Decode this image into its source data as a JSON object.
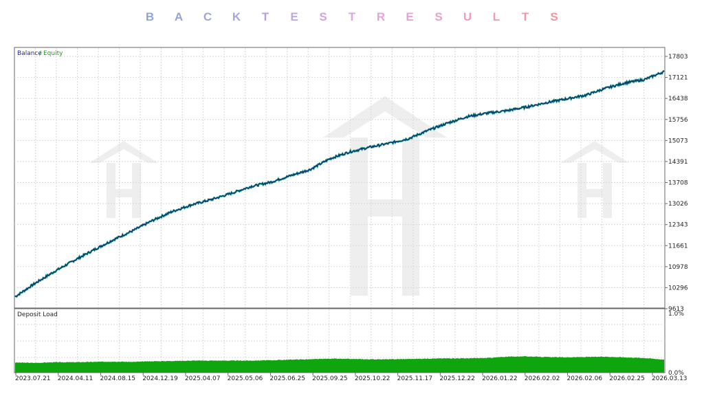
{
  "title_letters": [
    "B",
    "A",
    "C",
    "K",
    "T",
    "E",
    "S",
    "T",
    "R",
    "E",
    "S",
    "U",
    "L",
    "T",
    "S"
  ],
  "title_colors": [
    "#8fa6d8",
    "#93a4dc",
    "#9ea5dd",
    "#a9a3e0",
    "#b4a2e0",
    "#bfa6e3",
    "#cfa4e4",
    "#daa6e3",
    "#e3a3dc",
    "#e8a2d2",
    "#ec9fc8",
    "#ee9dbd",
    "#ef9bb2",
    "#ef98a8",
    "#ee95a0"
  ],
  "chart_data": [
    {
      "type": "line",
      "legend": [
        "Balance",
        "Equity"
      ],
      "legend_colors": [
        "#1f1fb0",
        "#1aa11a"
      ],
      "line_color": "#0b2f6b",
      "y_ticks": [
        "17803",
        "17121",
        "16438",
        "15756",
        "15073",
        "14391",
        "13708",
        "13026",
        "12343",
        "11661",
        "10978",
        "10296",
        "9613"
      ],
      "ylim": [
        9613,
        17803
      ],
      "x_ticks": [
        "2023.07.21",
        "2024.04.11",
        "2024.08.15",
        "2024.12.19",
        "2025.04.07",
        "2025.05.06",
        "2025.06.25",
        "2025.09.25",
        "2025.10.22",
        "2025.11.17",
        "2025.12.22",
        "2026.01.22",
        "2026.02.02",
        "2026.02.06",
        "2026.02.25",
        "2026.03.13"
      ],
      "series": [
        {
          "name": "Balance",
          "values": [
            10000,
            10430,
            10820,
            11180,
            11520,
            11850,
            12150,
            12480,
            12770,
            12990,
            13160,
            13360,
            13580,
            13720,
            13930,
            14130,
            14480,
            14700,
            14850,
            14980,
            15130,
            15400,
            15640,
            15850,
            15960,
            16040,
            16160,
            16300,
            16420,
            16540,
            16760,
            16940,
            17050,
            17310
          ]
        }
      ],
      "grid": true
    },
    {
      "type": "area",
      "title": "Deposit Load",
      "y_ticks": [
        "1.0%",
        "0.0%"
      ],
      "ylim": [
        0,
        1.0
      ],
      "fill_color": "#0ea50e",
      "series": [
        {
          "values": [
            0.31,
            0.3,
            0.32,
            0.32,
            0.33,
            0.34,
            0.33,
            0.35,
            0.36,
            0.37,
            0.37,
            0.37,
            0.37,
            0.38,
            0.4,
            0.41,
            0.43,
            0.42,
            0.41,
            0.41,
            0.42,
            0.43,
            0.44,
            0.44,
            0.45,
            0.49,
            0.5,
            0.48,
            0.47,
            0.48,
            0.49,
            0.47,
            0.45,
            0.4
          ]
        }
      ],
      "grid": true
    }
  ]
}
